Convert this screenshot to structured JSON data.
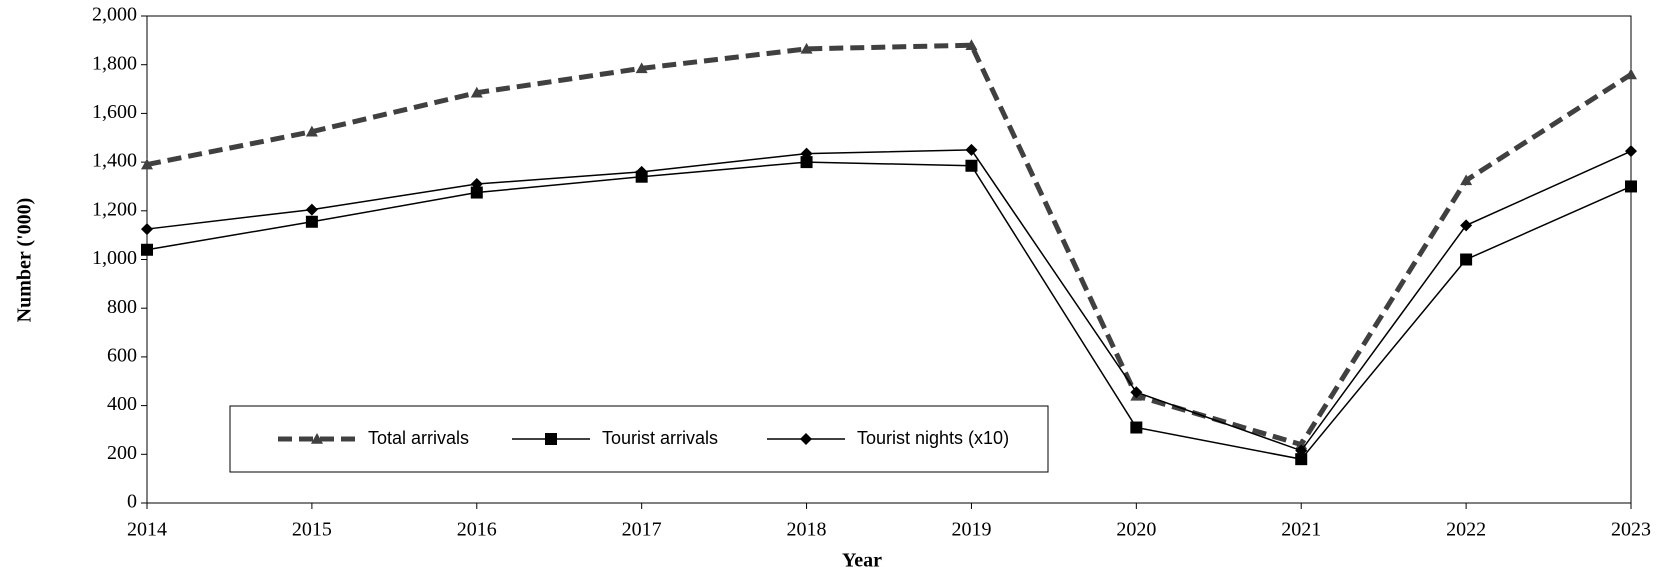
{
  "chart_data": {
    "type": "line",
    "xlabel": "Year",
    "ylabel": "Number  ('000)",
    "x": [
      2014,
      2015,
      2016,
      2017,
      2018,
      2019,
      2020,
      2021,
      2022,
      2023
    ],
    "xlim": [
      2014,
      2023
    ],
    "xticks": [
      2014,
      2015,
      2016,
      2017,
      2018,
      2019,
      2020,
      2021,
      2022,
      2023
    ],
    "ylim": [
      0,
      2000
    ],
    "yticks": [
      0,
      200,
      400,
      600,
      800,
      {
        "value": 1000,
        "label": "1,000"
      },
      {
        "value": 1200,
        "label": "1,200"
      },
      {
        "value": 1400,
        "label": "1,400"
      },
      {
        "value": 1600,
        "label": "1,600"
      },
      {
        "value": 1800,
        "label": "1,800"
      },
      {
        "value": 2000,
        "label": "2,000"
      }
    ],
    "grid": false,
    "legend": "lower left",
    "series": [
      {
        "name": "Total arrivals",
        "color": "#404040",
        "dashed": true,
        "marker": "triangle",
        "values": [
          1390,
          1525,
          1685,
          1785,
          1865,
          1880,
          440,
          240,
          1325,
          1760
        ]
      },
      {
        "name": "Tourist arrivals",
        "color": "#000000",
        "dashed": false,
        "marker": "square",
        "values": [
          1040,
          1155,
          1275,
          1340,
          1400,
          1385,
          310,
          180,
          1000,
          1300
        ]
      },
      {
        "name": "Tourist nights (x10)",
        "color": "#000000",
        "dashed": false,
        "marker": "diamond",
        "values": [
          1125,
          1205,
          1310,
          1360,
          1435,
          1450,
          455,
          215,
          1140,
          1445
        ]
      }
    ]
  }
}
